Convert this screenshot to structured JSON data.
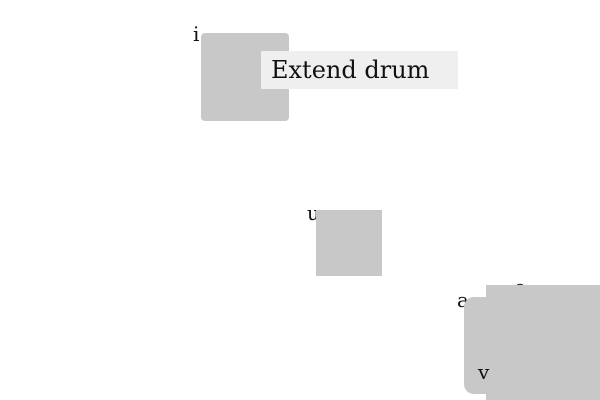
{
  "tooltip": {
    "text": "Extend drum"
  },
  "elements": [
    {
      "id": "i",
      "label": "i"
    },
    {
      "id": "u",
      "label": "u"
    },
    {
      "id": "a",
      "label": "a"
    },
    {
      "id": "e",
      "label": "e"
    },
    {
      "id": "v",
      "label": "v"
    }
  ],
  "colors": {
    "box_fill": "#c8c8c8",
    "tooltip_bg": "#efefef",
    "background": "#ffffff"
  }
}
